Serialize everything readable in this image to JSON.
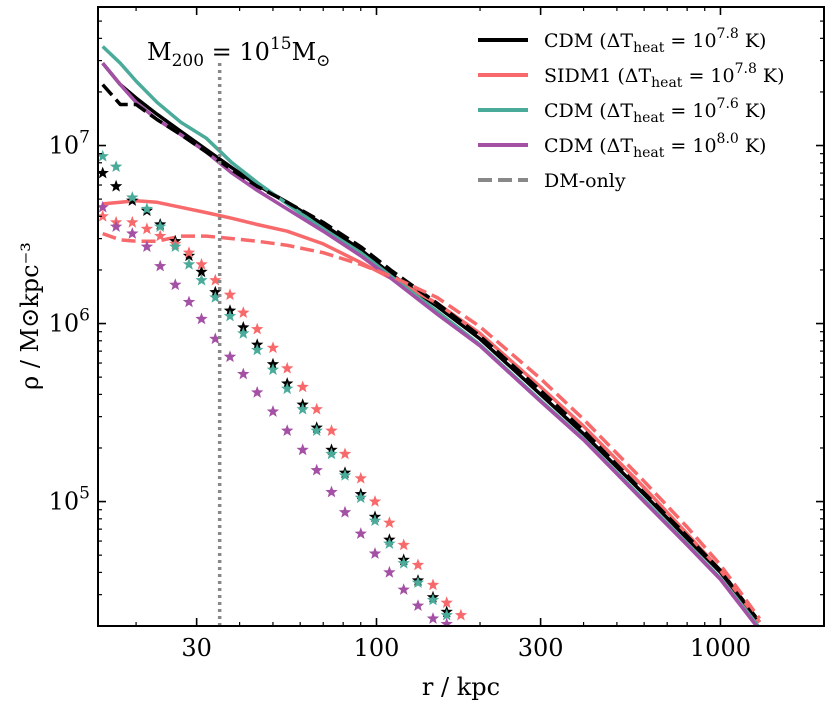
{
  "chart_data": {
    "type": "line",
    "title": "",
    "xlabel": "r / kpc",
    "ylabel": "ρ / M⊙kpc⁻³",
    "xscale": "log",
    "yscale": "log",
    "xlim": [
      15.5,
      2000
    ],
    "ylim": [
      20000,
      60000000
    ],
    "x_ticks": [
      {
        "value": 30,
        "label": "30"
      },
      {
        "value": 100,
        "label": "100"
      },
      {
        "value": 300,
        "label": "300"
      },
      {
        "value": 1000,
        "label": "1000"
      }
    ],
    "y_ticks": [
      {
        "value": 100000,
        "base": "10",
        "exp": "5"
      },
      {
        "value": 1000000,
        "base": "10",
        "exp": "6"
      },
      {
        "value": 10000000,
        "base": "10",
        "exp": "7"
      }
    ],
    "annotation": {
      "text_main": "M",
      "text_sub": "200",
      "text_eq": " = 10",
      "text_exp": "15",
      "text_unit": "M",
      "text_unit_sub": "⊙",
      "x_line": 35
    },
    "legend_position": "top-right",
    "legend": [
      {
        "pre": "CDM (ΔT",
        "sub": "heat",
        "mid": " = 10",
        "sup": "7.8",
        "post": " K)",
        "color": "#000000",
        "dash": "solid"
      },
      {
        "pre": "SIDM1 (ΔT",
        "sub": "heat",
        "mid": " = 10",
        "sup": "7.8",
        "post": " K)",
        "color": "#f8696b",
        "dash": "solid"
      },
      {
        "pre": "CDM (ΔT",
        "sub": "heat",
        "mid": " = 10",
        "sup": "7.6",
        "post": " K)",
        "color": "#4aab9b",
        "dash": "solid"
      },
      {
        "pre": "CDM (ΔT",
        "sub": "heat",
        "mid": " = 10",
        "sup": "8.0",
        "post": " K)",
        "color": "#a350a5",
        "dash": "solid"
      },
      {
        "pre": "DM-only",
        "sub": "",
        "mid": "",
        "sup": "",
        "post": "",
        "color": "#888888",
        "dash": "dashed"
      }
    ],
    "series": [
      {
        "name": "CDM 10^7.8 total",
        "color": "#000000",
        "style": "solid",
        "x": [
          16,
          18,
          20,
          23,
          27,
          32,
          38,
          45,
          55,
          70,
          90,
          110,
          150,
          200,
          300,
          400,
          600,
          800,
          1000,
          1300
        ],
        "y": [
          29000000,
          22000000,
          18500000,
          15000000,
          12000000,
          9500000,
          7500000,
          6000000,
          4800000,
          3600000,
          2600000,
          1900000,
          1250000,
          820000,
          400000,
          240000,
          110000,
          62000,
          40000,
          21000
        ]
      },
      {
        "name": "SIDM1 10^7.8 total",
        "color": "#f8696b",
        "style": "solid",
        "x": [
          16,
          18,
          20,
          23,
          27,
          32,
          38,
          45,
          55,
          70,
          90,
          110,
          150,
          200,
          300,
          400,
          600,
          800,
          1000,
          1300
        ],
        "y": [
          4700000,
          4800000,
          4900000,
          4800000,
          4500000,
          4200000,
          3900000,
          3600000,
          3300000,
          2800000,
          2200000,
          1800000,
          1300000,
          880000,
          440000,
          265000,
          120000,
          66000,
          41000,
          21000
        ]
      },
      {
        "name": "CDM 10^7.6 total",
        "color": "#4aab9b",
        "style": "solid",
        "x": [
          16,
          18,
          20,
          23,
          27,
          32,
          38,
          45,
          55,
          70,
          90,
          110,
          150,
          200,
          300,
          400,
          600,
          800,
          1000,
          1300
        ],
        "y": [
          36000000,
          29000000,
          23000000,
          17500000,
          13500000,
          11000000,
          8000000,
          6200000,
          4700000,
          3400000,
          2500000,
          1850000,
          1170000,
          760000,
          370000,
          225000,
          102000,
          58000,
          37000,
          19500
        ]
      },
      {
        "name": "CDM 10^8.0 total",
        "color": "#a350a5",
        "style": "solid",
        "x": [
          16,
          18,
          20,
          23,
          27,
          32,
          38,
          45,
          55,
          70,
          90,
          110,
          150,
          200,
          300,
          400,
          600,
          800,
          1000,
          1300
        ],
        "y": [
          29000000,
          22000000,
          17500000,
          14000000,
          11500000,
          9200000,
          7000000,
          5600000,
          4400000,
          3300000,
          2400000,
          1800000,
          1130000,
          750000,
          365000,
          222000,
          100000,
          57000,
          36500,
          19000
        ]
      },
      {
        "name": "CDM DM-only",
        "color": "#000000",
        "style": "dashed",
        "x": [
          16,
          18,
          20,
          23,
          27,
          32,
          38,
          45,
          55,
          70,
          90,
          110,
          150,
          200,
          300,
          400,
          600,
          800,
          1000,
          1300
        ],
        "y": [
          22000000,
          17000000,
          17000000,
          14000000,
          11500000,
          9200000,
          7300000,
          5900000,
          4800000,
          3700000,
          2700000,
          2000000,
          1300000,
          850000,
          420000,
          250000,
          112000,
          64000,
          41000,
          21000
        ]
      },
      {
        "name": "SIDM1 DM-only",
        "color": "#f8696b",
        "style": "dashed",
        "x": [
          16,
          18,
          20,
          23,
          27,
          32,
          38,
          45,
          55,
          70,
          90,
          110,
          150,
          200,
          300,
          400,
          600,
          800,
          1000,
          1300
        ],
        "y": [
          3200000,
          2950000,
          2900000,
          2900000,
          3100000,
          3100000,
          3000000,
          2900000,
          2750000,
          2500000,
          2150000,
          1850000,
          1400000,
          960000,
          490000,
          290000,
          130000,
          72000,
          44000,
          22000
        ]
      }
    ],
    "stars": [
      {
        "name": "CDM 10^7.8 stars",
        "color": "#000000",
        "x": [
          16,
          17.5,
          19.5,
          21.5,
          23.5,
          26,
          28.5,
          31,
          34,
          37.5,
          41,
          45,
          50,
          55,
          61,
          67,
          74,
          81,
          90,
          99,
          109,
          120,
          132,
          146,
          160
        ],
        "y": [
          7000000,
          5900000,
          4900000,
          4300000,
          3600000,
          2900000,
          2400000,
          1950000,
          1500000,
          1180000,
          950000,
          760000,
          590000,
          460000,
          350000,
          260000,
          195000,
          145000,
          110000,
          82000,
          61000,
          47000,
          36000,
          29000,
          24000
        ]
      },
      {
        "name": "SIDM1 10^7.8 stars",
        "color": "#f8696b",
        "x": [
          16,
          17.5,
          19.5,
          21.5,
          23.5,
          26,
          28.5,
          31,
          34,
          37.5,
          41,
          45,
          50,
          55,
          61,
          67,
          74,
          81,
          90,
          99,
          109,
          120,
          132,
          146,
          160,
          176
        ],
        "y": [
          4000000,
          3700000,
          3700000,
          3400000,
          3100000,
          2800000,
          2500000,
          2150000,
          1750000,
          1450000,
          1150000,
          930000,
          730000,
          560000,
          440000,
          330000,
          250000,
          185000,
          135000,
          100000,
          76000,
          57000,
          44000,
          34000,
          27000,
          23000
        ]
      },
      {
        "name": "CDM 10^7.6 stars",
        "color": "#4aab9b",
        "x": [
          16,
          17.5,
          19.5,
          21.5,
          23.5,
          26,
          28.5,
          31,
          34,
          37.5,
          41,
          45,
          50,
          55,
          61,
          67,
          74,
          81,
          90,
          99,
          109,
          120,
          132,
          146,
          160
        ],
        "y": [
          8700000,
          7600000,
          5100000,
          4400000,
          3500000,
          2700000,
          2150000,
          1750000,
          1400000,
          1100000,
          880000,
          710000,
          550000,
          430000,
          330000,
          250000,
          185000,
          140000,
          105000,
          78000,
          58000,
          45000,
          35000,
          28000,
          23000
        ]
      },
      {
        "name": "CDM 10^8.0 stars",
        "color": "#a350a5",
        "x": [
          16,
          17.5,
          19.5,
          21.5,
          23.5,
          26,
          28.5,
          31,
          34,
          37.5,
          41,
          45,
          50,
          55,
          61,
          67,
          74,
          81,
          90,
          99,
          109,
          120,
          132,
          146,
          160
        ],
        "y": [
          4500000,
          3500000,
          3200000,
          2700000,
          2100000,
          1650000,
          1320000,
          1060000,
          820000,
          650000,
          520000,
          410000,
          320000,
          250000,
          195000,
          150000,
          113000,
          87000,
          66000,
          51000,
          40000,
          32000,
          26000,
          22000,
          20500
        ]
      }
    ]
  }
}
